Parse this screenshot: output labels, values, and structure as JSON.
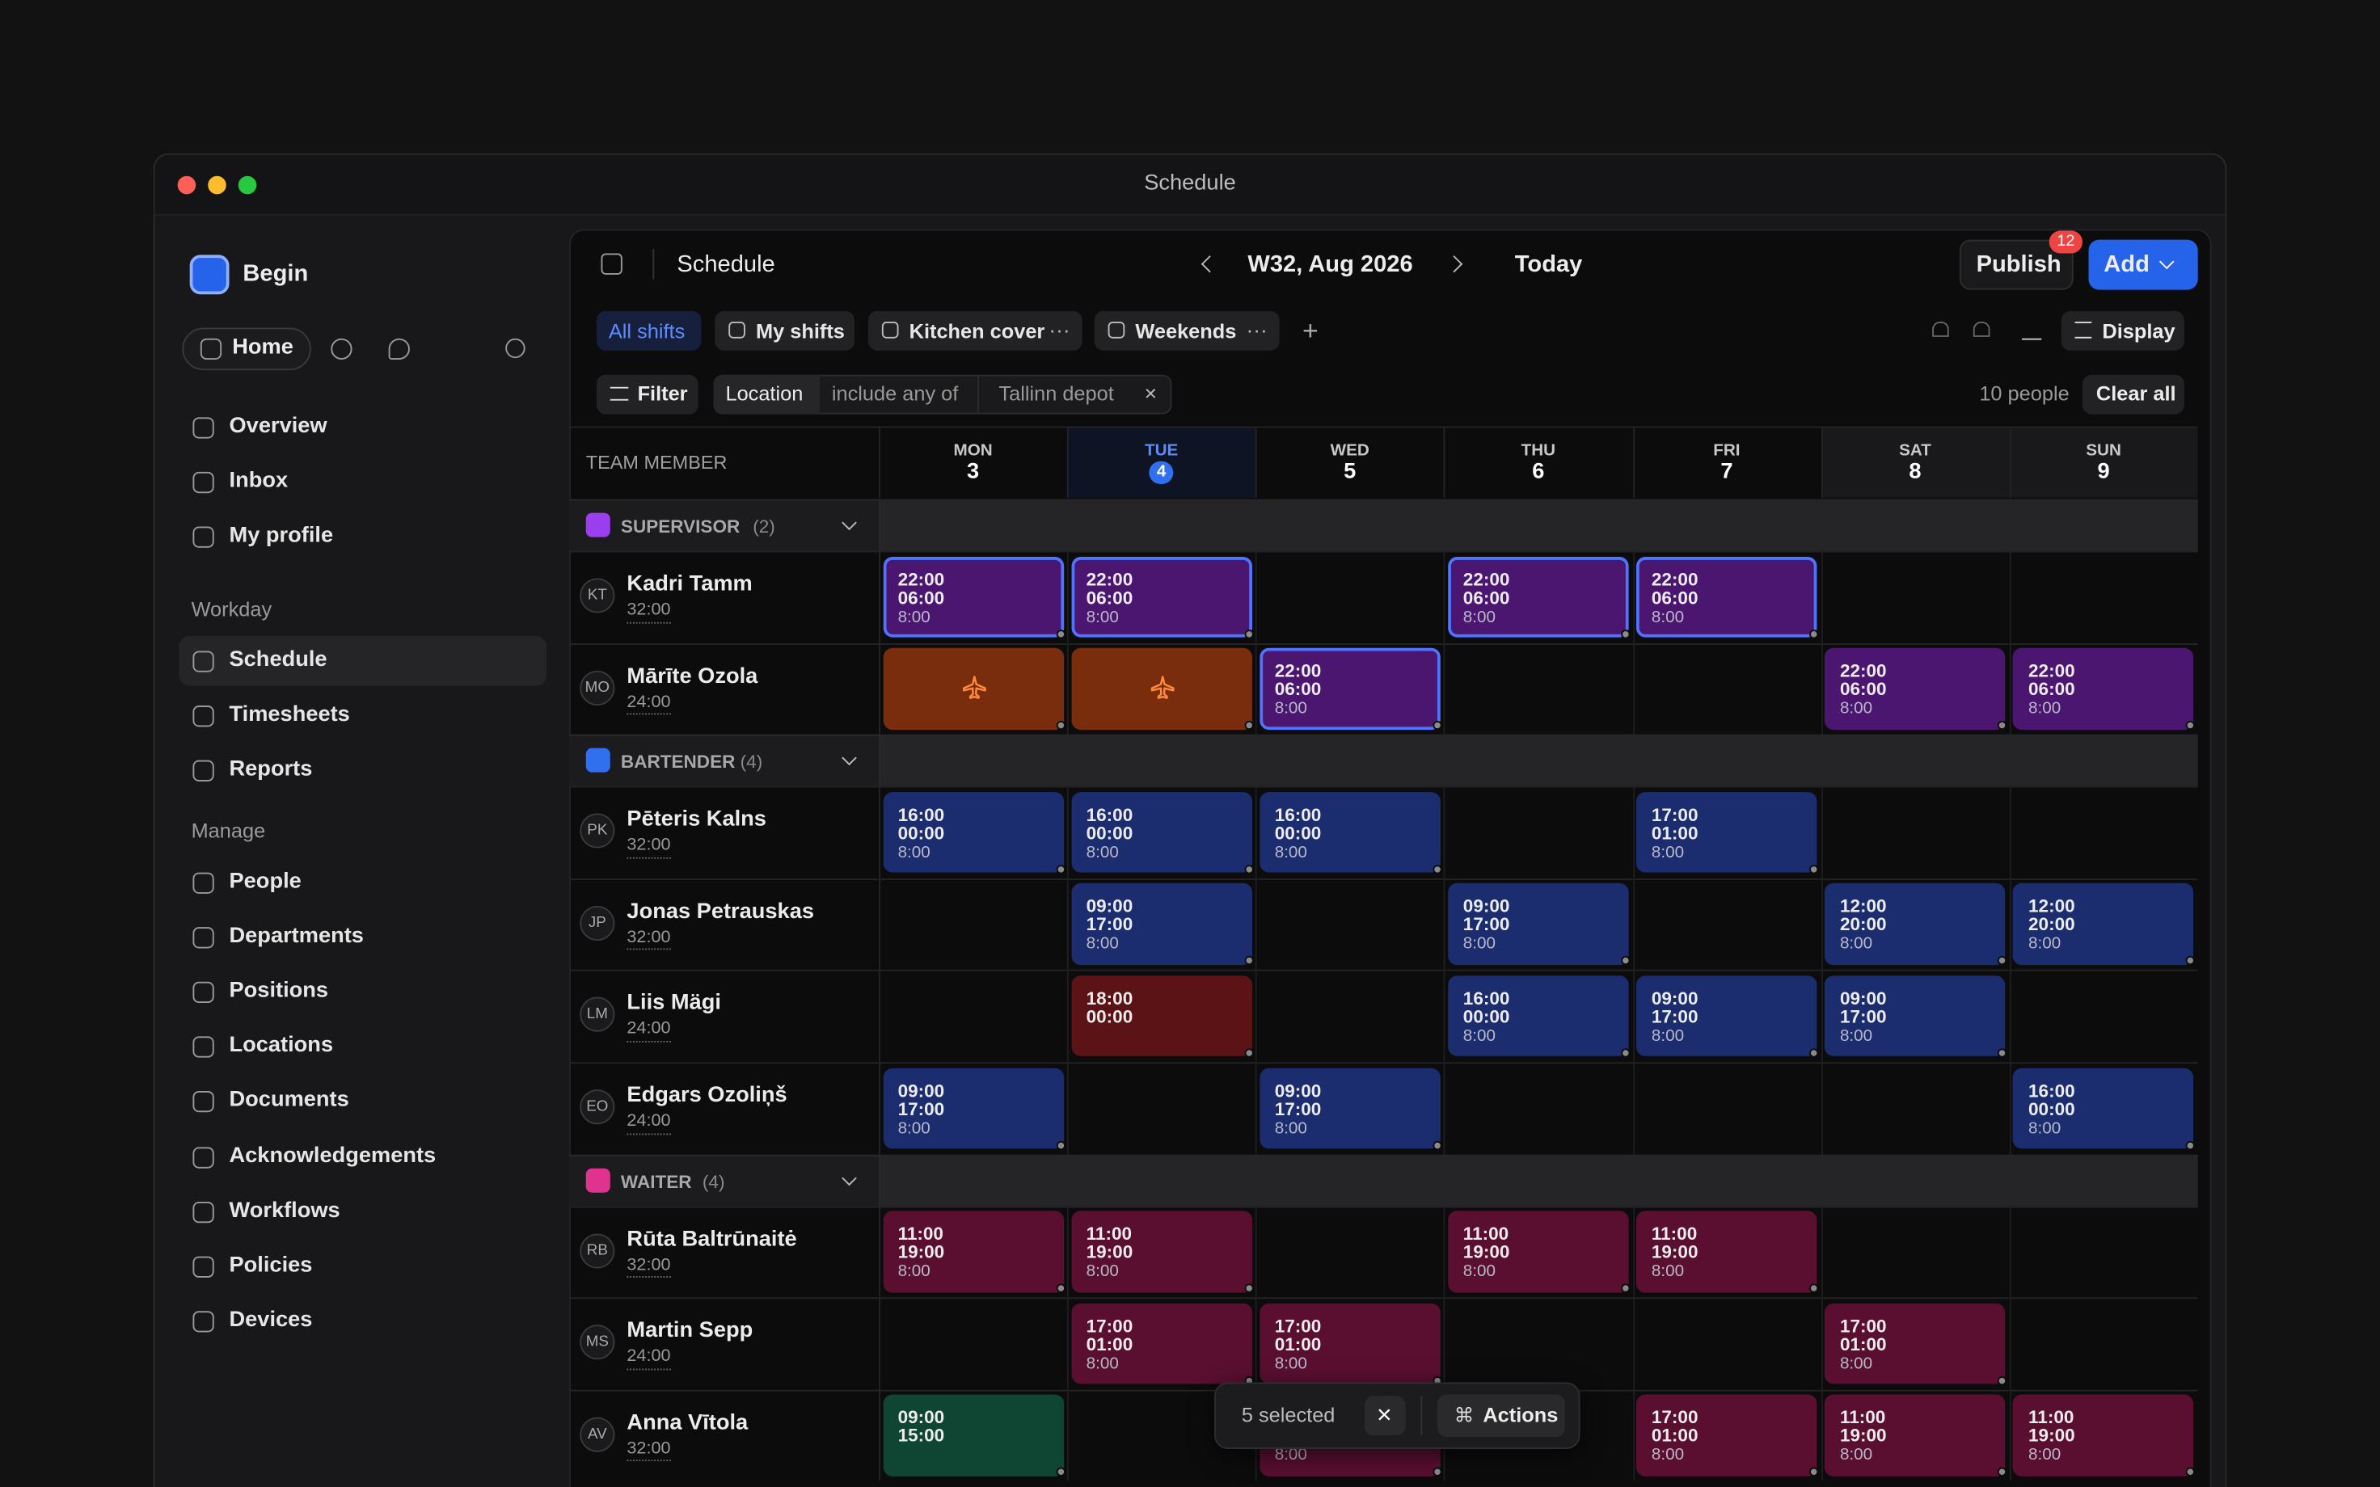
{
  "window": {
    "title": "Schedule"
  },
  "sidebar": {
    "workspace": "Begin",
    "home": "Home",
    "primary": [
      "Overview",
      "Inbox",
      "My profile"
    ],
    "sections": [
      {
        "title": "Workday",
        "items": [
          "Schedule",
          "Timesheets",
          "Reports"
        ]
      },
      {
        "title": "Manage",
        "items": [
          "People",
          "Departments",
          "Positions",
          "Locations",
          "Documents",
          "Acknowledgements",
          "Workflows",
          "Policies",
          "Devices"
        ]
      }
    ]
  },
  "toolbar": {
    "title": "Schedule",
    "week": "W32, Aug 2026",
    "today": "Today",
    "publish": "Publish",
    "publish_badge": "12",
    "add": "Add"
  },
  "views": {
    "tabs": [
      "All shifts",
      "My shifts",
      "Kitchen cover",
      "Weekends"
    ],
    "display": "Display"
  },
  "filter": {
    "button": "Filter",
    "field": "Location",
    "operator": "include any of",
    "value": "Tallinn depot",
    "count": "10 people",
    "clear": "Clear all"
  },
  "grid": {
    "member_header": "TEAM MEMBER",
    "days": [
      {
        "name": "MON",
        "date": "3"
      },
      {
        "name": "TUE",
        "date": "4"
      },
      {
        "name": "WED",
        "date": "5"
      },
      {
        "name": "THU",
        "date": "6"
      },
      {
        "name": "FRI",
        "date": "7"
      },
      {
        "name": "SAT",
        "date": "8"
      },
      {
        "name": "SUN",
        "date": "9"
      }
    ],
    "groups": [
      {
        "name": "SUPERVISOR",
        "count": "(2)",
        "color": "#9b3ef0",
        "members": [
          {
            "initials": "KT",
            "name": "Kadri Tamm",
            "hours": "32:00",
            "shifts": [
              {
                "start": "22:00",
                "end": "06:00",
                "duration": "8:00",
                "color": "#4b1670",
                "selected": true
              },
              {
                "start": "22:00",
                "end": "06:00",
                "duration": "8:00",
                "color": "#4b1670",
                "selected": true
              },
              null,
              {
                "start": "22:00",
                "end": "06:00",
                "duration": "8:00",
                "color": "#4b1670",
                "selected": true
              },
              {
                "start": "22:00",
                "end": "06:00",
                "duration": "8:00",
                "color": "#4b1670",
                "selected": true
              },
              null,
              null
            ]
          },
          {
            "initials": "MO",
            "name": "Mārīte Ozola",
            "hours": "24:00",
            "shifts": [
              {
                "type": "leave",
                "color": "#7a2d0d"
              },
              {
                "type": "leave",
                "color": "#7a2d0d"
              },
              {
                "start": "22:00",
                "end": "06:00",
                "duration": "8:00",
                "color": "#4b1670",
                "selected": true
              },
              null,
              null,
              {
                "start": "22:00",
                "end": "06:00",
                "duration": "8:00",
                "color": "#4b1670"
              },
              {
                "start": "22:00",
                "end": "06:00",
                "duration": "8:00",
                "color": "#4b1670"
              }
            ]
          }
        ]
      },
      {
        "name": "BARTENDER",
        "count": "(4)",
        "color": "#2f6ff0",
        "members": [
          {
            "initials": "PK",
            "name": "Pēteris Kalns",
            "hours": "32:00",
            "shifts": [
              {
                "start": "16:00",
                "end": "00:00",
                "duration": "8:00",
                "color": "#1b2d6e"
              },
              {
                "start": "16:00",
                "end": "00:00",
                "duration": "8:00",
                "color": "#1b2d6e"
              },
              {
                "start": "16:00",
                "end": "00:00",
                "duration": "8:00",
                "color": "#1b2d6e"
              },
              null,
              {
                "start": "17:00",
                "end": "01:00",
                "duration": "8:00",
                "color": "#1b2d6e"
              },
              null,
              null
            ]
          },
          {
            "initials": "JP",
            "name": "Jonas Petrauskas",
            "hours": "32:00",
            "shifts": [
              null,
              {
                "start": "09:00",
                "end": "17:00",
                "duration": "8:00",
                "color": "#1b2d6e"
              },
              null,
              {
                "start": "09:00",
                "end": "17:00",
                "duration": "8:00",
                "color": "#1b2d6e"
              },
              null,
              {
                "start": "12:00",
                "end": "20:00",
                "duration": "8:00",
                "color": "#1b2d6e"
              },
              {
                "start": "12:00",
                "end": "20:00",
                "duration": "8:00",
                "color": "#1b2d6e"
              }
            ]
          },
          {
            "initials": "LM",
            "name": "Liis Mägi",
            "hours": "24:00",
            "shifts": [
              null,
              {
                "start": "18:00",
                "end": "00:00",
                "color": "#5c1316"
              },
              null,
              {
                "start": "16:00",
                "end": "00:00",
                "duration": "8:00",
                "color": "#1b2d6e"
              },
              {
                "start": "09:00",
                "end": "17:00",
                "duration": "8:00",
                "color": "#1b2d6e"
              },
              {
                "start": "09:00",
                "end": "17:00",
                "duration": "8:00",
                "color": "#1b2d6e"
              },
              null
            ]
          },
          {
            "initials": "EO",
            "name": "Edgars Ozoliņš",
            "hours": "24:00",
            "shifts": [
              {
                "start": "09:00",
                "end": "17:00",
                "duration": "8:00",
                "color": "#1b2d6e"
              },
              null,
              {
                "start": "09:00",
                "end": "17:00",
                "duration": "8:00",
                "color": "#1b2d6e"
              },
              null,
              null,
              null,
              {
                "start": "16:00",
                "end": "00:00",
                "duration": "8:00",
                "color": "#1b2d6e"
              }
            ]
          }
        ]
      },
      {
        "name": "WAITER",
        "count": "(4)",
        "color": "#e0338f",
        "members": [
          {
            "initials": "RB",
            "name": "Rūta Baltrūnaitė",
            "hours": "32:00",
            "shifts": [
              {
                "start": "11:00",
                "end": "19:00",
                "duration": "8:00",
                "color": "#5a0f31"
              },
              {
                "start": "11:00",
                "end": "19:00",
                "duration": "8:00",
                "color": "#5a0f31"
              },
              null,
              {
                "start": "11:00",
                "end": "19:00",
                "duration": "8:00",
                "color": "#5a0f31"
              },
              {
                "start": "11:00",
                "end": "19:00",
                "duration": "8:00",
                "color": "#5a0f31"
              },
              null,
              null
            ]
          },
          {
            "initials": "MS",
            "name": "Martin Sepp",
            "hours": "24:00",
            "shifts": [
              null,
              {
                "start": "17:00",
                "end": "01:00",
                "duration": "8:00",
                "color": "#5a0f31"
              },
              {
                "start": "17:00",
                "end": "01:00",
                "duration": "8:00",
                "color": "#5a0f31"
              },
              null,
              null,
              {
                "start": "17:00",
                "end": "01:00",
                "duration": "8:00",
                "color": "#5a0f31"
              },
              null
            ]
          },
          {
            "initials": "AV",
            "name": "Anna Vītola",
            "hours": "32:00",
            "shifts": [
              {
                "start": "09:00",
                "end": "15:00",
                "color": "#0e4533"
              },
              null,
              {
                "duration": "8:00",
                "color": "#5a0f31"
              },
              null,
              {
                "start": "17:00",
                "end": "01:00",
                "duration": "8:00",
                "color": "#5a0f31"
              },
              {
                "start": "11:00",
                "end": "19:00",
                "duration": "8:00",
                "color": "#5a0f31"
              },
              {
                "start": "11:00",
                "end": "19:00",
                "duration": "8:00",
                "color": "#5a0f31"
              }
            ]
          }
        ]
      }
    ]
  },
  "selection": {
    "label": "5 selected",
    "actions": "Actions"
  }
}
